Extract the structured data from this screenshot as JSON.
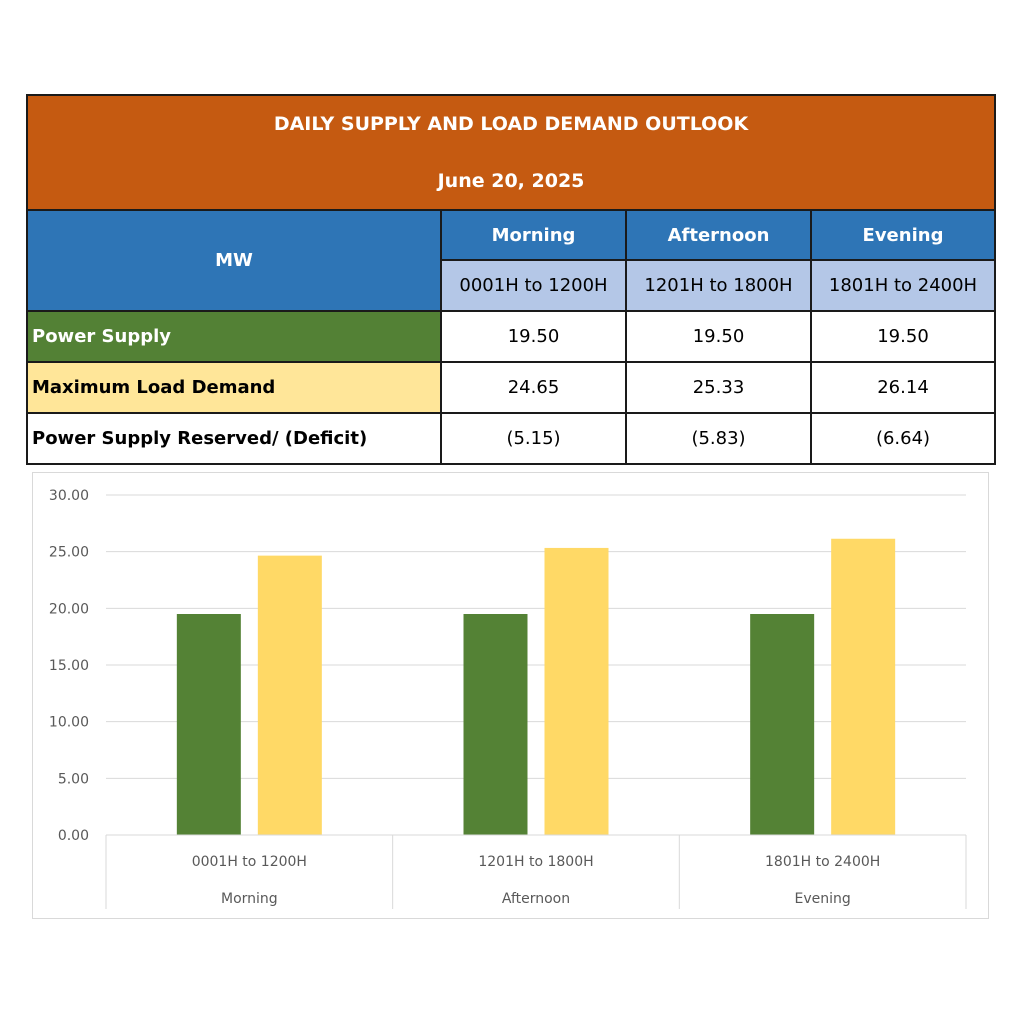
{
  "table": {
    "title": "DAILY SUPPLY AND LOAD DEMAND OUTLOOK",
    "date": "June 20, 2025",
    "unit_label": "MW",
    "periods": [
      {
        "name": "Morning",
        "range": "0001H to 1200H"
      },
      {
        "name": "Afternoon",
        "range": "1201H to 1800H"
      },
      {
        "name": "Evening",
        "range": "1801H to 2400H"
      }
    ],
    "rows": [
      {
        "label": "Power Supply",
        "values": [
          "19.50",
          "19.50",
          "19.50"
        ]
      },
      {
        "label": "Maximum Load Demand",
        "values": [
          "24.65",
          "25.33",
          "26.14"
        ]
      },
      {
        "label": "Power Supply Reserved/ (Deficit)",
        "values": [
          "(5.15)",
          "(5.83)",
          "(6.64)"
        ]
      }
    ],
    "colors": {
      "title_bg": "#C55A11",
      "header_bg": "#2E75B6",
      "range_bg": "#B4C7E7",
      "supply_bg": "#538135",
      "demand_bg": "#FFE699"
    }
  },
  "chart_data": {
    "type": "bar",
    "categories": [
      {
        "range": "0001H to 1200H",
        "period": "Morning"
      },
      {
        "range": "1201H to 1800H",
        "period": "Afternoon"
      },
      {
        "range": "1801H to 2400H",
        "period": "Evening"
      }
    ],
    "series": [
      {
        "values": [
          19.5,
          19.5,
          19.5
        ],
        "color": "#548235"
      },
      {
        "values": [
          24.65,
          25.33,
          26.14
        ],
        "color": "#FFD966"
      }
    ],
    "ylim": [
      0,
      30
    ],
    "yticks": [
      "0.00",
      "5.00",
      "10.00",
      "15.00",
      "20.00",
      "25.00",
      "30.00"
    ],
    "grid": true,
    "legend": "none"
  }
}
